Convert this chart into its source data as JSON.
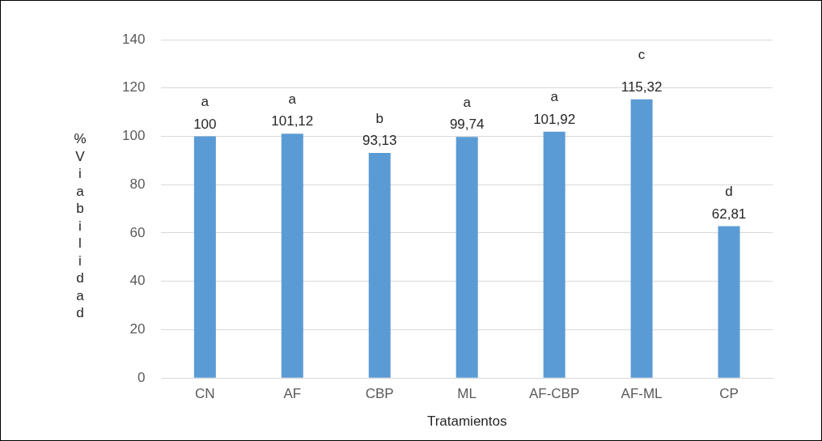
{
  "chart_data": {
    "type": "bar",
    "xlabel": "Tratamientos",
    "ylabel": "% Viabilidad",
    "categories": [
      "CN",
      "AF",
      "CBP",
      "ML",
      "AF-CBP",
      "AF-ML",
      "CP"
    ],
    "values": [
      100,
      101.12,
      93.13,
      99.74,
      101.92,
      115.32,
      62.81
    ],
    "value_labels": [
      "100",
      "101,12",
      "93,13",
      "99,74",
      "101,92",
      "115,32",
      "62,81"
    ],
    "color": "#5b9bd5",
    "ylim": [
      0,
      140
    ],
    "yticks": [
      0,
      20,
      40,
      60,
      80,
      100,
      120,
      140
    ],
    "grid": "y",
    "legend": false,
    "annotations": [
      "a",
      "a",
      "b",
      "a",
      "a",
      "c",
      "d"
    ]
  }
}
